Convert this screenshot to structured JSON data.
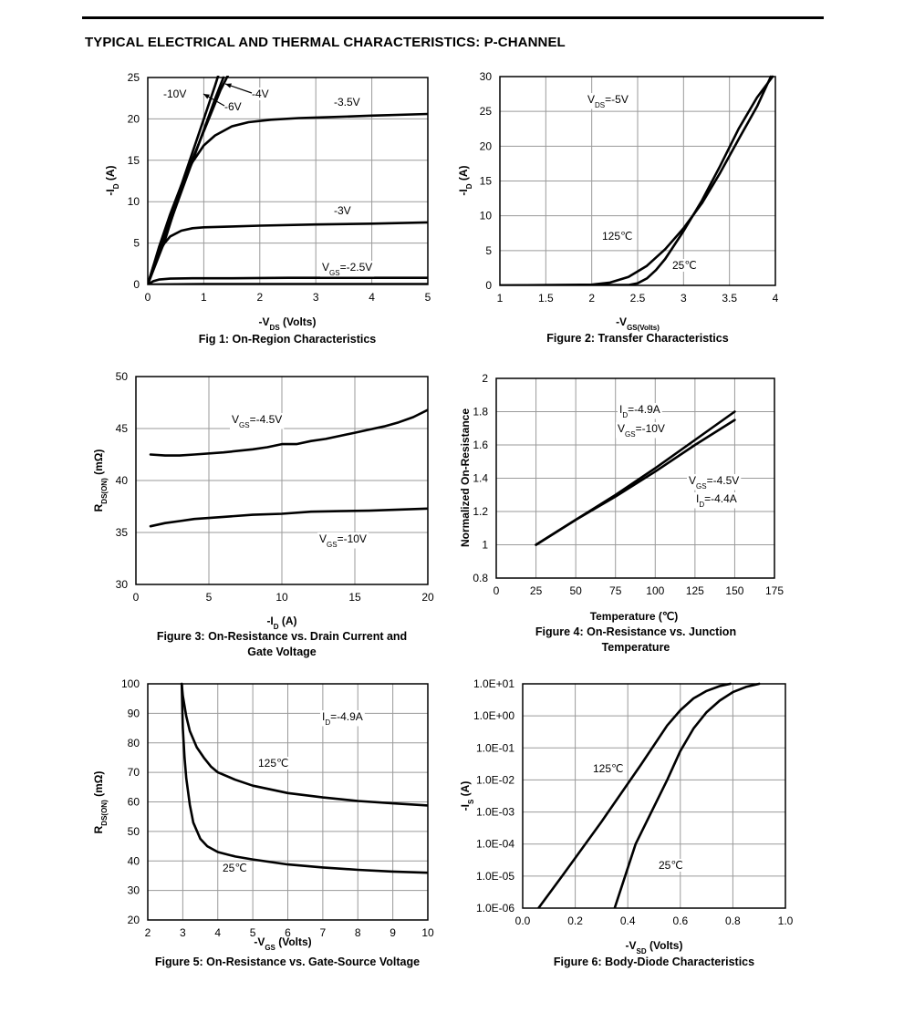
{
  "page": {
    "title": "TYPICAL ELECTRICAL AND THERMAL CHARACTERISTICS: P-CHANNEL"
  },
  "chart_data": [
    {
      "id": "fig1",
      "type": "line",
      "caption": "Fig 1: On-Region Characteristics",
      "xlabel": "-V_DS (Volts)",
      "ylabel": "-I_D (A)",
      "xlim": [
        0,
        5
      ],
      "ylim": [
        0,
        25
      ],
      "xticks": [
        "0",
        "1",
        "2",
        "3",
        "4",
        "5"
      ],
      "yticks": [
        "0",
        "5",
        "10",
        "15",
        "20",
        "25"
      ],
      "grid": true,
      "series": [
        {
          "name": "-10V",
          "x": [
            0,
            0.3,
            0.6,
            0.9,
            1.2,
            1.27
          ],
          "y": [
            0,
            6,
            12,
            18,
            24,
            25.5
          ]
        },
        {
          "name": "-6V",
          "x": [
            0,
            0.3,
            0.6,
            0.9,
            1.2,
            1.35
          ],
          "y": [
            0,
            5.6,
            11.2,
            16.8,
            22.4,
            25
          ]
        },
        {
          "name": "-4V",
          "x": [
            0,
            0.3,
            0.5,
            0.7,
            1.0,
            1.3,
            1.45
          ],
          "y": [
            0,
            5.2,
            9.5,
            13.5,
            18.5,
            23.5,
            25.5
          ]
        },
        {
          "name": "-3.5V",
          "x": [
            0,
            0.2,
            0.4,
            0.6,
            0.8,
            1.0,
            1.2,
            1.5,
            1.8,
            2.2,
            2.7,
            3.2,
            4.0,
            5.0
          ],
          "y": [
            0,
            4.5,
            8.5,
            12,
            14.8,
            16.8,
            18,
            19.1,
            19.6,
            19.9,
            20.1,
            20.2,
            20.4,
            20.6
          ]
        },
        {
          "name": "-3V",
          "x": [
            0,
            0.1,
            0.2,
            0.3,
            0.4,
            0.6,
            0.8,
            1.0,
            1.5,
            2.0,
            3.0,
            4.0,
            5.0
          ],
          "y": [
            0,
            2.2,
            3.9,
            5.0,
            5.8,
            6.5,
            6.8,
            6.9,
            7.0,
            7.1,
            7.25,
            7.35,
            7.5
          ]
        },
        {
          "name": "V_GS=-2.5V",
          "x": [
            0,
            0.1,
            0.2,
            0.4,
            0.8,
            1.5,
            2.5,
            3.5,
            5.0
          ],
          "y": [
            0,
            0.4,
            0.6,
            0.7,
            0.75,
            0.75,
            0.8,
            0.8,
            0.8
          ]
        },
        {
          "name": "",
          "x": [
            0,
            1,
            2,
            3,
            4,
            5
          ],
          "y": [
            0,
            0.05,
            0.05,
            0.05,
            0.05,
            0.05
          ]
        }
      ],
      "annotations": [
        "-10V",
        "-6V",
        "-4V",
        "-3.5V",
        "-3V",
        "V_GS=-2.5V"
      ]
    },
    {
      "id": "fig2",
      "type": "line",
      "caption": "Figure 2: Transfer Characteristics",
      "xlabel": "-V_GS(Volts)",
      "ylabel": "-I_D (A)",
      "xlim": [
        1,
        4
      ],
      "ylim": [
        0,
        30
      ],
      "xticks": [
        "1",
        "1.5",
        "2",
        "2.5",
        "3",
        "3.5",
        "4"
      ],
      "yticks": [
        "0",
        "5",
        "10",
        "15",
        "20",
        "25",
        "30"
      ],
      "grid": true,
      "series": [
        {
          "name": "125℃",
          "x": [
            1,
            2.0,
            2.2,
            2.4,
            2.6,
            2.8,
            3.0,
            3.2,
            3.4,
            3.6,
            3.8,
            3.95
          ],
          "y": [
            0,
            0.1,
            0.4,
            1.2,
            2.8,
            5.2,
            8.2,
            11.8,
            16.2,
            21,
            25.7,
            30
          ]
        },
        {
          "name": "25℃",
          "x": [
            1,
            2.4,
            2.5,
            2.6,
            2.7,
            2.8,
            3.0,
            3.2,
            3.4,
            3.6,
            3.8,
            3.97
          ],
          "y": [
            0,
            0.05,
            0.3,
            1.0,
            2.2,
            3.8,
            7.8,
            12.2,
            17.2,
            22.5,
            27,
            30
          ]
        }
      ],
      "annotations": [
        "V_DS=-5V",
        "125℃",
        "25℃"
      ]
    },
    {
      "id": "fig3",
      "type": "line",
      "caption": "Figure 3: On-Resistance vs. Drain Current and Gate Voltage",
      "xlabel": "-I_D (A)",
      "ylabel": "R_DS(ON) (mΩ)",
      "xlim": [
        0,
        20
      ],
      "ylim": [
        30,
        50
      ],
      "xticks": [
        "0",
        "5",
        "10",
        "15",
        "20"
      ],
      "yticks": [
        "30",
        "35",
        "40",
        "45",
        "50"
      ],
      "grid": true,
      "series": [
        {
          "name": "V_GS=-4.5V",
          "x": [
            1,
            2,
            3,
            4,
            6,
            8,
            9,
            10,
            11,
            12,
            13,
            14,
            15,
            16,
            17,
            18,
            19,
            20
          ],
          "y": [
            42.5,
            42.4,
            42.4,
            42.5,
            42.7,
            43.0,
            43.2,
            43.5,
            43.5,
            43.8,
            44.0,
            44.3,
            44.6,
            44.9,
            45.2,
            45.6,
            46.1,
            46.8
          ]
        },
        {
          "name": "V_GS=-10V",
          "x": [
            1,
            2,
            3,
            4,
            6,
            8,
            10,
            12,
            14,
            16,
            18,
            20
          ],
          "y": [
            35.6,
            35.9,
            36.1,
            36.3,
            36.5,
            36.7,
            36.8,
            37.0,
            37.05,
            37.1,
            37.2,
            37.3
          ]
        }
      ],
      "annotations": [
        "V_GS=-4.5V",
        "V_GS=-10V"
      ]
    },
    {
      "id": "fig4",
      "type": "line",
      "caption": "Figure 4: On-Resistance vs. Junction Temperature",
      "xlabel": "Temperature (℃)",
      "ylabel": "Normalized On-Resistance",
      "xlim": [
        0,
        175
      ],
      "ylim": [
        0.8,
        2
      ],
      "xticks": [
        "0",
        "25",
        "50",
        "75",
        "100",
        "125",
        "150",
        "175"
      ],
      "yticks": [
        "0.8",
        "1",
        "1.2",
        "1.4",
        "1.6",
        "1.8",
        "2"
      ],
      "grid": true,
      "series": [
        {
          "name": "I_D=-4.9A, V_GS=-10V",
          "x": [
            25,
            50,
            75,
            100,
            125,
            150
          ],
          "y": [
            1.0,
            1.15,
            1.3,
            1.46,
            1.63,
            1.8
          ]
        },
        {
          "name": "V_GS=-4.5V, I_D=-4.4A",
          "x": [
            25,
            50,
            75,
            100,
            125,
            150
          ],
          "y": [
            1.0,
            1.15,
            1.29,
            1.44,
            1.6,
            1.75
          ]
        }
      ],
      "annotations": [
        "I_D=-4.9A",
        "V_GS=-10V",
        "V_GS=-4.5V",
        "I_D=-4.4A"
      ]
    },
    {
      "id": "fig5",
      "type": "line",
      "caption": "Figure 5: On-Resistance vs. Gate-Source Voltage",
      "xlabel": "-V_GS (Volts)",
      "ylabel": "R_DS(ON) (mΩ)",
      "xlim": [
        2,
        10
      ],
      "ylim": [
        20,
        100
      ],
      "xticks": [
        "2",
        "3",
        "4",
        "5",
        "6",
        "7",
        "8",
        "9",
        "10"
      ],
      "yticks": [
        "20",
        "30",
        "40",
        "50",
        "60",
        "70",
        "80",
        "90",
        "100"
      ],
      "grid": true,
      "series": [
        {
          "name": "125℃",
          "x": [
            2.97,
            3.0,
            3.1,
            3.2,
            3.4,
            3.6,
            3.8,
            4.0,
            4.5,
            5.0,
            6.0,
            7.0,
            8.0,
            9.0,
            10.0
          ],
          "y": [
            100,
            96,
            89,
            84,
            78.5,
            75,
            72,
            70,
            67.5,
            65.5,
            63,
            61.5,
            60.3,
            59.5,
            58.8
          ]
        },
        {
          "name": "25℃",
          "x": [
            2.97,
            3.0,
            3.05,
            3.1,
            3.2,
            3.3,
            3.5,
            3.7,
            4.0,
            4.5,
            5.0,
            6.0,
            7.0,
            8.0,
            9.0,
            10.0
          ],
          "y": [
            100,
            85,
            75,
            68,
            59,
            53,
            47.5,
            45,
            43,
            41.5,
            40.5,
            38.8,
            37.8,
            37.0,
            36.4,
            36
          ]
        }
      ],
      "annotations": [
        "I_D=-4.9A",
        "125℃",
        "25℃"
      ]
    },
    {
      "id": "fig6",
      "type": "line",
      "caption": "Figure 6: Body-Diode Characteristics",
      "xlabel": "-V_SD (Volts)",
      "ylabel": "-I_S (A)",
      "xlim": [
        0,
        1.0
      ],
      "ylim": [
        1e-06,
        10
      ],
      "yscale": "log",
      "xticks": [
        "0.0",
        "0.2",
        "0.4",
        "0.6",
        "0.8",
        "1.0"
      ],
      "yticks": [
        "1.0E-06",
        "1.0E-05",
        "1.0E-04",
        "1.0E-03",
        "1.0E-02",
        "1.0E-01",
        "1.0E+00",
        "1.0E+01"
      ],
      "grid": true,
      "series": [
        {
          "name": "125℃",
          "x": [
            0.06,
            0.15,
            0.3,
            0.45,
            0.55,
            0.6,
            0.65,
            0.7,
            0.75,
            0.79
          ],
          "y": [
            1e-06,
            1e-05,
            0.0005,
            0.03,
            0.5,
            1.5,
            3.5,
            6,
            8.5,
            10
          ]
        },
        {
          "name": "25℃",
          "x": [
            0.35,
            0.43,
            0.55,
            0.6,
            0.65,
            0.7,
            0.75,
            0.8,
            0.85,
            0.9
          ],
          "y": [
            1e-06,
            0.0001,
            0.01,
            0.08,
            0.4,
            1.3,
            3,
            5.5,
            8,
            10
          ]
        }
      ],
      "annotations": [
        "125℃",
        "25℃"
      ]
    }
  ]
}
